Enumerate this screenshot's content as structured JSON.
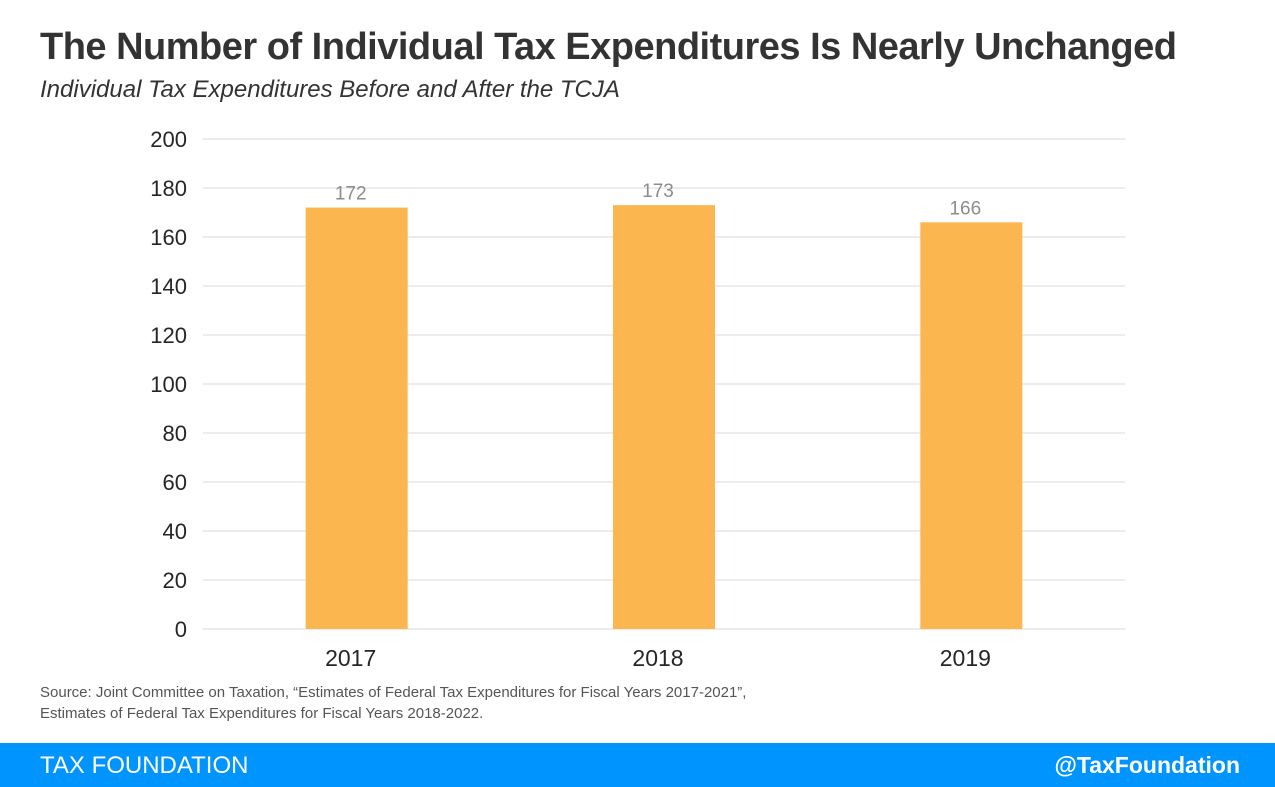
{
  "chart_data": {
    "type": "bar",
    "title": "The Number of Individual Tax Expenditures Is Nearly Unchanged",
    "subtitle": "Individual Tax Expenditures Before and After the TCJA",
    "categories": [
      "2017",
      "2018",
      "2019"
    ],
    "values": [
      172,
      173,
      166
    ],
    "data_labels": [
      "172",
      "173",
      "166"
    ],
    "ylim": [
      0,
      200
    ],
    "yticks": [
      0,
      20,
      40,
      60,
      80,
      100,
      120,
      140,
      160,
      180,
      200
    ],
    "ytick_labels": [
      "0",
      "20",
      "40",
      "60",
      "80",
      "100",
      "120",
      "140",
      "160",
      "180",
      "200"
    ],
    "xlabel": "",
    "ylabel": "",
    "grid": true,
    "legend": "none"
  },
  "source": {
    "line1": "Source: Joint Committee on Taxation, “Estimates of Federal Tax Expenditures for Fiscal Years 2017-2021”,",
    "line2": "Estimates of Federal Tax Expenditures for Fiscal Years 2018-2022."
  },
  "footer": {
    "brand": "TAX FOUNDATION",
    "handle": "@TaxFoundation"
  },
  "colors": {
    "bar": "#fbb64f",
    "footer": "#0094ff",
    "grid": "#d9d9d9",
    "data_label": "#8c8c8c",
    "axis_text": "#262626"
  }
}
